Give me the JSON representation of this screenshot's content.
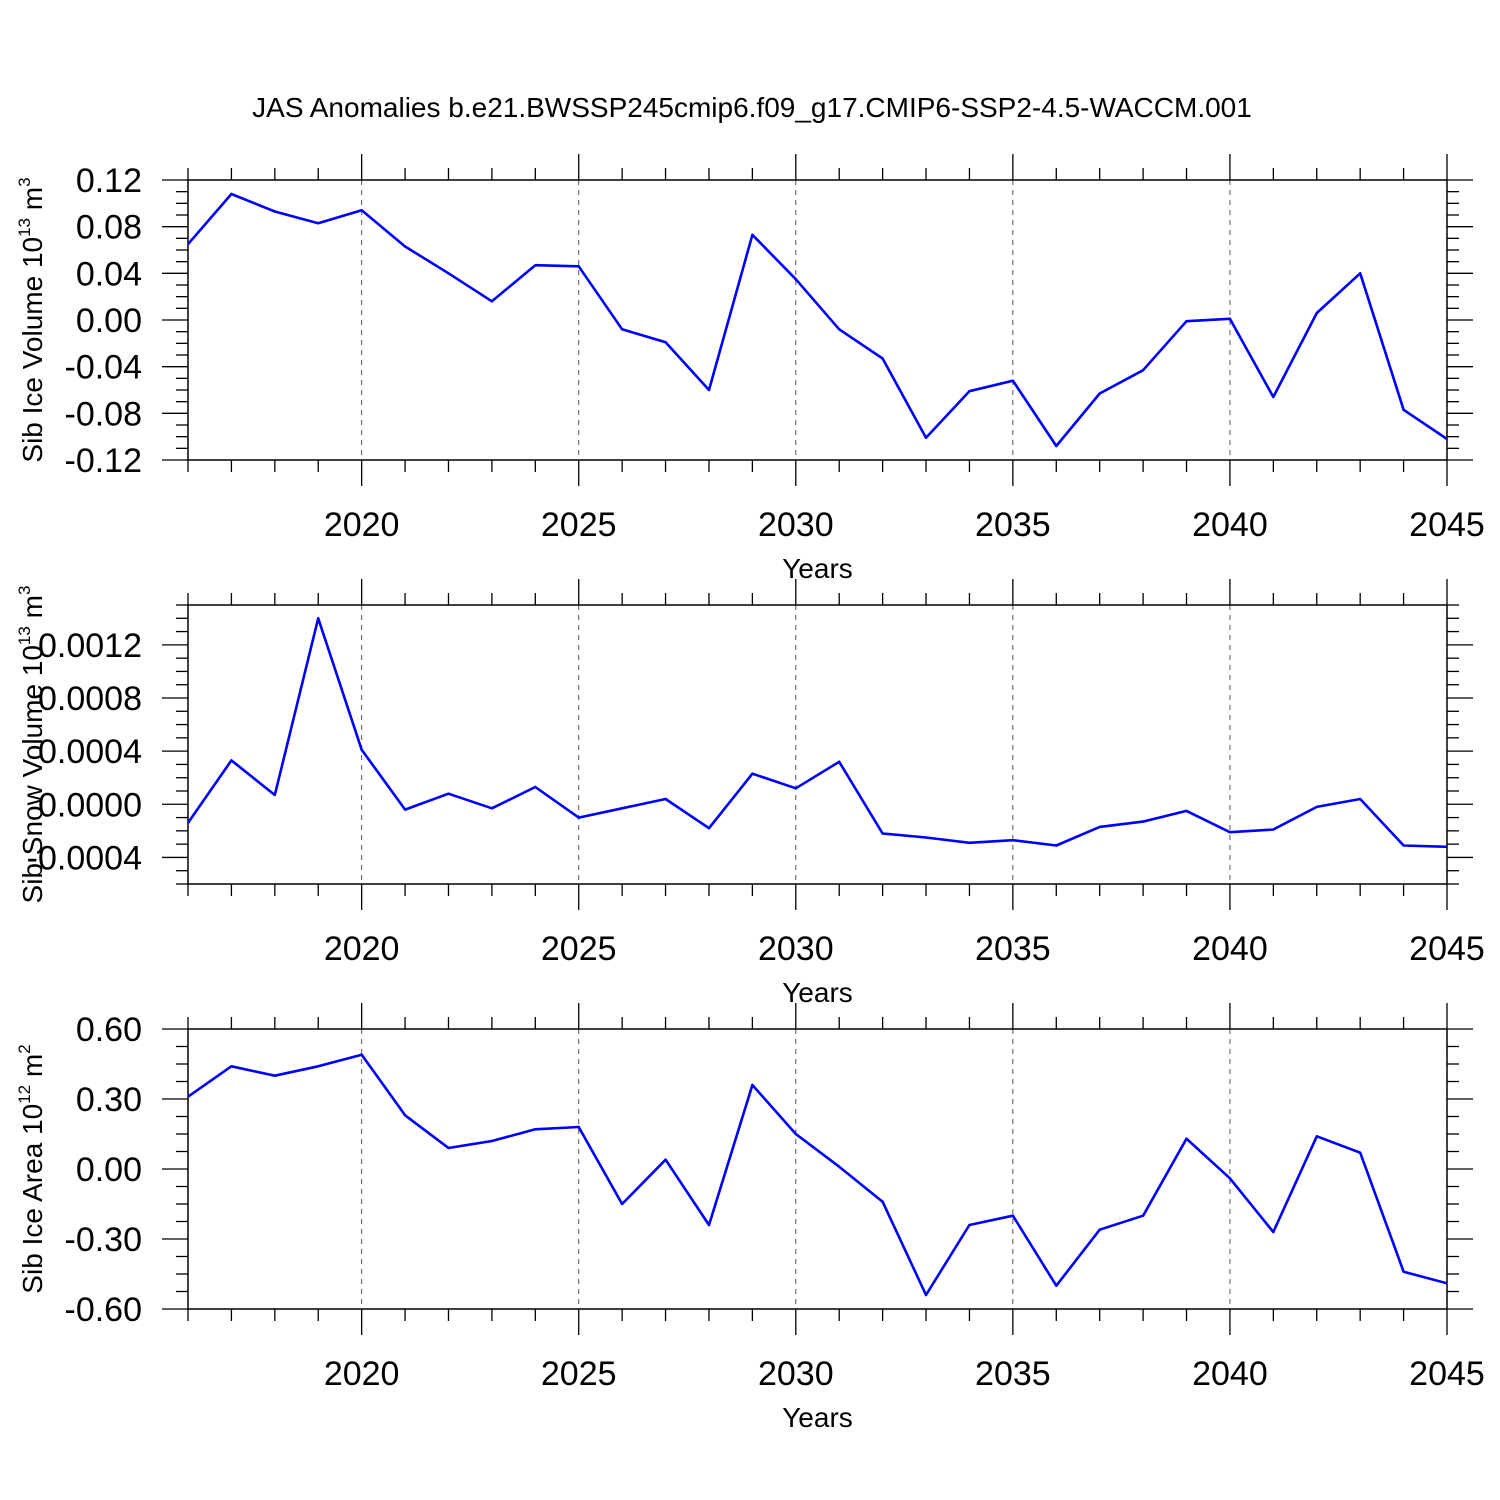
{
  "title": "JAS Anomalies b.e21.BWSSP245cmip6.f09_g17.CMIP6-SSP2-4.5-WACCM.001",
  "colors": {
    "line": "#0000ff",
    "axis": "#000000",
    "grid": "#555555"
  },
  "chart_data": [
    {
      "type": "line",
      "ylabel": {
        "text": "Sib Ice Volume 10",
        "exp": "13",
        "unit": " m",
        "unit_exp": "3"
      },
      "xlabel": "Years",
      "xlim": [
        2016,
        2045
      ],
      "ylim": [
        -0.12,
        0.12
      ],
      "yticks": [
        0.12,
        0.08,
        0.04,
        0.0,
        -0.04,
        -0.08,
        -0.12
      ],
      "yticklabels": [
        "0.12",
        "0.08",
        "0.04",
        "0.00",
        "-0.04",
        "-0.08",
        "-0.12"
      ],
      "xticks": [
        2020,
        2025,
        2030,
        2035,
        2040,
        2045
      ],
      "xticklabels": [
        "2020",
        "2025",
        "2030",
        "2035",
        "2040",
        "2045"
      ],
      "x": [
        2016,
        2017,
        2018,
        2019,
        2020,
        2021,
        2022,
        2023,
        2024,
        2025,
        2026,
        2027,
        2028,
        2029,
        2030,
        2031,
        2032,
        2033,
        2034,
        2035,
        2036,
        2037,
        2038,
        2039,
        2040,
        2041,
        2042,
        2043,
        2044,
        2045
      ],
      "values": [
        0.065,
        0.108,
        0.093,
        0.083,
        0.094,
        0.063,
        0.04,
        0.016,
        0.047,
        0.046,
        -0.008,
        -0.019,
        -0.06,
        0.073,
        0.035,
        -0.008,
        -0.033,
        -0.101,
        -0.061,
        -0.052,
        -0.108,
        -0.063,
        -0.043,
        -0.001,
        0.001,
        -0.066,
        0.006,
        0.04,
        -0.077,
        -0.102
      ]
    },
    {
      "type": "line",
      "ylabel": {
        "text": "Sib Snow Volume 10",
        "exp": "13",
        "unit": " m",
        "unit_exp": "3"
      },
      "xlabel": "Years",
      "xlim": [
        2016,
        2045
      ],
      "ylim": [
        -0.0006,
        0.0015
      ],
      "yticks": [
        0.0012,
        0.0008,
        0.0004,
        0.0,
        -0.0004
      ],
      "yticklabels": [
        "0.0012",
        "0.0008",
        "0.0004",
        "0.0000",
        "-0.0004"
      ],
      "xticks": [
        2020,
        2025,
        2030,
        2035,
        2040,
        2045
      ],
      "xticklabels": [
        "2020",
        "2025",
        "2030",
        "2035",
        "2040",
        "2045"
      ],
      "x": [
        2016,
        2017,
        2018,
        2019,
        2020,
        2021,
        2022,
        2023,
        2024,
        2025,
        2026,
        2027,
        2028,
        2029,
        2030,
        2031,
        2032,
        2033,
        2034,
        2035,
        2036,
        2037,
        2038,
        2039,
        2040,
        2041,
        2042,
        2043,
        2044,
        2045
      ],
      "values": [
        -0.00014,
        0.00033,
        7e-05,
        0.0014,
        0.00041,
        -4e-05,
        8e-05,
        -3e-05,
        0.00013,
        -0.0001,
        -3e-05,
        4e-05,
        -0.00018,
        0.00023,
        0.00012,
        0.00032,
        -0.00022,
        -0.00025,
        -0.00029,
        -0.00027,
        -0.00031,
        -0.00017,
        -0.00013,
        -5e-05,
        -0.00021,
        -0.00019,
        -2e-05,
        4e-05,
        -0.00031,
        -0.00032
      ]
    },
    {
      "type": "line",
      "ylabel": {
        "text": "Sib Ice Area 10",
        "exp": "12",
        "unit": " m",
        "unit_exp": "2"
      },
      "xlabel": "Years",
      "xlim": [
        2016,
        2045
      ],
      "ylim": [
        -0.6,
        0.6
      ],
      "yticks": [
        0.6,
        0.3,
        0.0,
        -0.3,
        -0.6
      ],
      "yticklabels": [
        "0.60",
        "0.30",
        "0.00",
        "-0.30",
        "-0.60"
      ],
      "xticks": [
        2020,
        2025,
        2030,
        2035,
        2040,
        2045
      ],
      "xticklabels": [
        "2020",
        "2025",
        "2030",
        "2035",
        "2040",
        "2045"
      ],
      "x": [
        2016,
        2017,
        2018,
        2019,
        2020,
        2021,
        2022,
        2023,
        2024,
        2025,
        2026,
        2027,
        2028,
        2029,
        2030,
        2031,
        2032,
        2033,
        2034,
        2035,
        2036,
        2037,
        2038,
        2039,
        2040,
        2041,
        2042,
        2043,
        2044,
        2045
      ],
      "values": [
        0.31,
        0.44,
        0.4,
        0.44,
        0.49,
        0.23,
        0.09,
        0.12,
        0.17,
        0.18,
        -0.15,
        0.04,
        -0.24,
        0.36,
        0.15,
        0.01,
        -0.14,
        -0.54,
        -0.24,
        -0.2,
        -0.5,
        -0.26,
        -0.2,
        0.13,
        -0.04,
        -0.27,
        0.14,
        0.07,
        -0.44,
        -0.49
      ]
    }
  ]
}
